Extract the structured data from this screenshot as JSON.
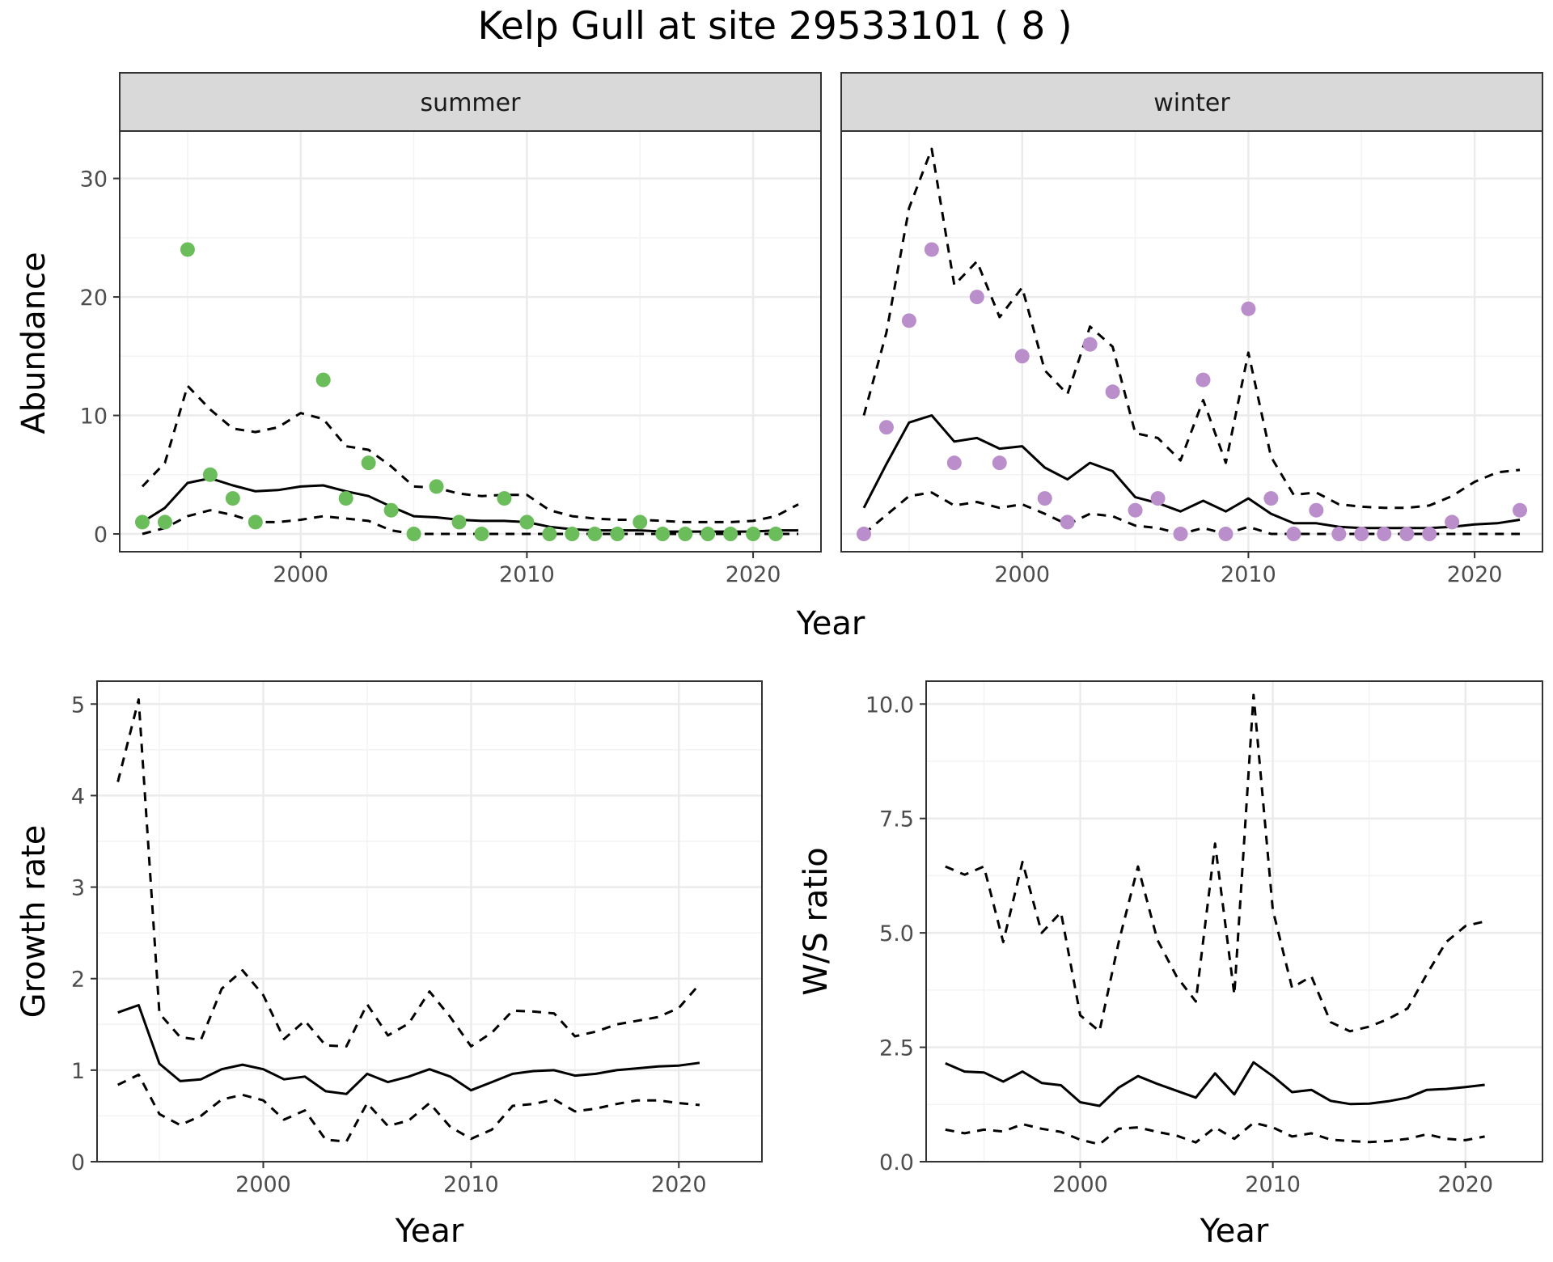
{
  "title": "Kelp Gull at site 29533101 ( 8 )",
  "colors": {
    "summer_points": "#6BBD5B",
    "winter_points": "#B98ECB",
    "lines": "#000000",
    "grid": "#EBEBEB",
    "strip_bg": "#D9D9D9"
  },
  "chart_data": [
    {
      "type": "scatter",
      "panel": "summer",
      "strip_label": "summer",
      "xlabel": "Year",
      "ylabel": "Abundance",
      "xlim": [
        1992,
        2023
      ],
      "ylim": [
        -1.5,
        34
      ],
      "x_ticks": [
        2000,
        2010,
        2020
      ],
      "y_ticks": [
        0,
        10,
        20,
        30
      ],
      "grid": true,
      "points": {
        "x": [
          1993,
          1994,
          1995,
          1996,
          1997,
          1998,
          2001,
          2002,
          2003,
          2004,
          2005,
          2006,
          2007,
          2008,
          2009,
          2010,
          2011,
          2012,
          2013,
          2014,
          2015,
          2016,
          2017,
          2018,
          2019,
          2020,
          2021
        ],
        "y": [
          1,
          1,
          24,
          5,
          3,
          1,
          13,
          3,
          6,
          2,
          0,
          4,
          1,
          0,
          3,
          1,
          0,
          0,
          0,
          0,
          1,
          0,
          0,
          0,
          0,
          0,
          0
        ]
      },
      "series": [
        {
          "role": "estimate",
          "style": "solid",
          "x": [
            1993,
            1994,
            1995,
            1996,
            1997,
            1998,
            1999,
            2000,
            2001,
            2002,
            2003,
            2004,
            2005,
            2006,
            2007,
            2008,
            2009,
            2010,
            2011,
            2012,
            2013,
            2014,
            2015,
            2016,
            2017,
            2018,
            2019,
            2020,
            2021,
            2022
          ],
          "values": [
            1,
            2.2,
            4.3,
            4.7,
            4.1,
            3.6,
            3.7,
            4,
            4.1,
            3.6,
            3.2,
            2.3,
            1.5,
            1.4,
            1.2,
            1.1,
            1.1,
            1,
            0.6,
            0.4,
            0.3,
            0.3,
            0.3,
            0.2,
            0.2,
            0.2,
            0.2,
            0.2,
            0.3,
            0.3
          ]
        },
        {
          "role": "upper",
          "style": "dashed",
          "x": [
            1993,
            1994,
            1995,
            1996,
            1997,
            1998,
            1999,
            2000,
            2001,
            2002,
            2003,
            2004,
            2005,
            2006,
            2007,
            2008,
            2009,
            2010,
            2011,
            2012,
            2013,
            2014,
            2015,
            2016,
            2017,
            2018,
            2019,
            2020,
            2021,
            2022
          ],
          "values": [
            4,
            6,
            12.5,
            10.5,
            8.9,
            8.6,
            9,
            10.2,
            9.7,
            7.4,
            7.1,
            5.7,
            4,
            3.9,
            3.4,
            3.2,
            3.3,
            3.3,
            2,
            1.5,
            1.3,
            1.2,
            1.2,
            1.1,
            1,
            1,
            1,
            1.1,
            1.5,
            2.5
          ]
        },
        {
          "role": "lower",
          "style": "dashed",
          "x": [
            1993,
            1994,
            1995,
            1996,
            1997,
            1998,
            1999,
            2000,
            2001,
            2002,
            2003,
            2004,
            2005,
            2006,
            2007,
            2008,
            2009,
            2010,
            2011,
            2012,
            2013,
            2014,
            2015,
            2016,
            2017,
            2018,
            2019,
            2020,
            2021,
            2022
          ],
          "values": [
            0,
            0.5,
            1.5,
            2,
            1.6,
            1,
            1,
            1.2,
            1.5,
            1.3,
            1.1,
            0.3,
            0,
            0,
            0,
            0,
            0,
            0,
            0,
            0,
            0,
            0,
            0,
            0,
            0,
            0,
            0,
            0,
            0,
            0
          ]
        }
      ]
    },
    {
      "type": "scatter",
      "panel": "winter",
      "strip_label": "winter",
      "xlabel": "Year",
      "ylabel": "Abundance",
      "xlim": [
        1992,
        2023
      ],
      "ylim": [
        -1.5,
        34
      ],
      "x_ticks": [
        2000,
        2010,
        2020
      ],
      "y_ticks": [
        0,
        10,
        20,
        30
      ],
      "grid": true,
      "points": {
        "x": [
          1993,
          1994,
          1995,
          1996,
          1997,
          1998,
          1999,
          2000,
          2001,
          2002,
          2003,
          2004,
          2005,
          2006,
          2007,
          2008,
          2009,
          2010,
          2011,
          2012,
          2013,
          2014,
          2015,
          2016,
          2017,
          2018,
          2019,
          2022
        ],
        "y": [
          0,
          9,
          18,
          24,
          6,
          20,
          6,
          15,
          3,
          1,
          16,
          12,
          2,
          3,
          0,
          13,
          0,
          19,
          3,
          0,
          2,
          0,
          0,
          0,
          0,
          0,
          1,
          2
        ]
      },
      "series": [
        {
          "role": "estimate",
          "style": "solid",
          "x": [
            1993,
            1994,
            1995,
            1996,
            1997,
            1998,
            1999,
            2000,
            2001,
            2002,
            2003,
            2004,
            2005,
            2006,
            2007,
            2008,
            2009,
            2010,
            2011,
            2012,
            2013,
            2014,
            2015,
            2016,
            2017,
            2018,
            2019,
            2020,
            2021,
            2022
          ],
          "values": [
            2.2,
            5.9,
            9.4,
            10,
            7.8,
            8.1,
            7.2,
            7.4,
            5.6,
            4.6,
            6,
            5.3,
            3.1,
            2.6,
            1.9,
            2.8,
            1.9,
            3,
            1.7,
            0.9,
            0.9,
            0.6,
            0.5,
            0.5,
            0.5,
            0.5,
            0.6,
            0.8,
            0.9,
            1.2
          ]
        },
        {
          "role": "upper",
          "style": "dashed",
          "x": [
            1993,
            1994,
            1995,
            1996,
            1997,
            1998,
            1999,
            2000,
            2001,
            2002,
            2003,
            2004,
            2005,
            2006,
            2007,
            2008,
            2009,
            2010,
            2011,
            2012,
            2013,
            2014,
            2015,
            2016,
            2017,
            2018,
            2019,
            2020,
            2021,
            2022
          ],
          "values": [
            10,
            17,
            27.5,
            32.5,
            21,
            23,
            18.3,
            20.8,
            13.8,
            11.8,
            17.5,
            15.8,
            8.5,
            8.1,
            6.2,
            11.3,
            6,
            15.3,
            6.5,
            3.3,
            3.5,
            2.5,
            2.3,
            2.2,
            2.2,
            2.4,
            3.2,
            4.4,
            5.2,
            5.4
          ]
        },
        {
          "role": "lower",
          "style": "dashed",
          "x": [
            1993,
            1994,
            1995,
            1996,
            1997,
            1998,
            1999,
            2000,
            2001,
            2002,
            2003,
            2004,
            2005,
            2006,
            2007,
            2008,
            2009,
            2010,
            2011,
            2012,
            2013,
            2014,
            2015,
            2016,
            2017,
            2018,
            2019,
            2020,
            2021,
            2022
          ],
          "values": [
            0,
            1.6,
            3.2,
            3.5,
            2.4,
            2.7,
            2.2,
            2.5,
            1.7,
            0.8,
            1.7,
            1.5,
            0.7,
            0.5,
            0,
            0.5,
            0,
            0.6,
            0,
            0,
            0,
            0,
            0,
            0,
            0,
            0,
            0,
            0,
            0,
            0
          ]
        }
      ]
    },
    {
      "type": "line",
      "panel": "growth",
      "xlabel": "Year",
      "ylabel": "Growth rate",
      "xlim": [
        1992,
        2024
      ],
      "ylim": [
        0,
        5.25
      ],
      "x_ticks": [
        2000,
        2010,
        2020
      ],
      "y_ticks": [
        0,
        1,
        2,
        3,
        4,
        5
      ],
      "grid": true,
      "series": [
        {
          "role": "estimate",
          "style": "solid",
          "x": [
            1993,
            1994,
            1995,
            1996,
            1997,
            1998,
            1999,
            2000,
            2001,
            2002,
            2003,
            2004,
            2005,
            2006,
            2007,
            2008,
            2009,
            2010,
            2011,
            2012,
            2013,
            2014,
            2015,
            2016,
            2017,
            2018,
            2019,
            2020,
            2021
          ],
          "values": [
            1.63,
            1.71,
            1.07,
            0.88,
            0.9,
            1.01,
            1.06,
            1.01,
            0.9,
            0.93,
            0.77,
            0.74,
            0.96,
            0.87,
            0.93,
            1.01,
            0.93,
            0.78,
            0.87,
            0.96,
            0.99,
            1,
            0.94,
            0.96,
            1,
            1.02,
            1.04,
            1.05,
            1.08
          ]
        },
        {
          "role": "upper",
          "style": "dashed",
          "x": [
            1993,
            1994,
            1995,
            1996,
            1997,
            1998,
            1999,
            2000,
            2001,
            2002,
            2003,
            2004,
            2005,
            2006,
            2007,
            2008,
            2009,
            2010,
            2011,
            2012,
            2013,
            2014,
            2015,
            2016,
            2017,
            2018,
            2019,
            2020,
            2021
          ],
          "values": [
            4.15,
            5.05,
            1.62,
            1.36,
            1.33,
            1.89,
            2.09,
            1.82,
            1.34,
            1.54,
            1.27,
            1.26,
            1.72,
            1.38,
            1.51,
            1.86,
            1.58,
            1.26,
            1.41,
            1.65,
            1.64,
            1.62,
            1.37,
            1.42,
            1.5,
            1.54,
            1.58,
            1.68,
            1.94
          ]
        },
        {
          "role": "lower",
          "style": "dashed",
          "x": [
            1993,
            1994,
            1995,
            1996,
            1997,
            1998,
            1999,
            2000,
            2001,
            2002,
            2003,
            2004,
            2005,
            2006,
            2007,
            2008,
            2009,
            2010,
            2011,
            2012,
            2013,
            2014,
            2015,
            2016,
            2017,
            2018,
            2019,
            2020,
            2021
          ],
          "values": [
            0.84,
            0.95,
            0.52,
            0.4,
            0.5,
            0.68,
            0.73,
            0.67,
            0.46,
            0.56,
            0.24,
            0.22,
            0.64,
            0.39,
            0.45,
            0.64,
            0.38,
            0.25,
            0.35,
            0.61,
            0.63,
            0.68,
            0.55,
            0.58,
            0.63,
            0.67,
            0.67,
            0.64,
            0.62
          ]
        }
      ]
    },
    {
      "type": "line",
      "panel": "ratio",
      "xlabel": "Year",
      "ylabel": "W/S ratio",
      "xlim": [
        1992,
        2024
      ],
      "ylim": [
        0,
        10.5
      ],
      "x_ticks": [
        2000,
        2010,
        2020
      ],
      "y_ticks": [
        0,
        2.5,
        5,
        7.5,
        10
      ],
      "y_tick_labels": [
        "0.0",
        "2.5",
        "5.0",
        "7.5",
        "10.0"
      ],
      "grid": true,
      "series": [
        {
          "role": "estimate",
          "style": "solid",
          "x": [
            1993,
            1994,
            1995,
            1996,
            1997,
            1998,
            1999,
            2000,
            2001,
            2002,
            2003,
            2004,
            2005,
            2006,
            2007,
            2008,
            2009,
            2010,
            2011,
            2012,
            2013,
            2014,
            2015,
            2016,
            2017,
            2018,
            2019,
            2020,
            2021
          ],
          "values": [
            2.15,
            1.97,
            1.95,
            1.75,
            1.97,
            1.72,
            1.67,
            1.3,
            1.22,
            1.62,
            1.87,
            1.7,
            1.55,
            1.4,
            1.93,
            1.47,
            2.17,
            1.87,
            1.52,
            1.57,
            1.33,
            1.26,
            1.27,
            1.32,
            1.4,
            1.57,
            1.59,
            1.63,
            1.68
          ]
        },
        {
          "role": "upper",
          "style": "dashed",
          "x": [
            1993,
            1994,
            1995,
            1996,
            1997,
            1998,
            1999,
            2000,
            2001,
            2002,
            2003,
            2004,
            2005,
            2006,
            2007,
            2008,
            2009,
            2010,
            2011,
            2012,
            2013,
            2014,
            2015,
            2016,
            2017,
            2018,
            2019,
            2020,
            2021
          ],
          "values": [
            6.45,
            6.27,
            6.45,
            4.8,
            6.55,
            5,
            5.45,
            3.2,
            2.85,
            4.8,
            6.45,
            4.85,
            4.05,
            3.5,
            6.95,
            3.65,
            10.2,
            5.5,
            3.8,
            4.05,
            3.05,
            2.85,
            2.95,
            3.12,
            3.35,
            4.1,
            4.8,
            5.15,
            5.25
          ]
        },
        {
          "role": "lower",
          "style": "dashed",
          "x": [
            1993,
            1994,
            1995,
            1996,
            1997,
            1998,
            1999,
            2000,
            2001,
            2002,
            2003,
            2004,
            2005,
            2006,
            2007,
            2008,
            2009,
            2010,
            2011,
            2012,
            2013,
            2014,
            2015,
            2016,
            2017,
            2018,
            2019,
            2020,
            2021
          ],
          "values": [
            0.7,
            0.62,
            0.7,
            0.66,
            0.82,
            0.72,
            0.65,
            0.48,
            0.38,
            0.72,
            0.75,
            0.65,
            0.57,
            0.42,
            0.75,
            0.5,
            0.85,
            0.75,
            0.55,
            0.62,
            0.48,
            0.45,
            0.43,
            0.45,
            0.5,
            0.6,
            0.5,
            0.47,
            0.55
          ]
        }
      ]
    }
  ]
}
